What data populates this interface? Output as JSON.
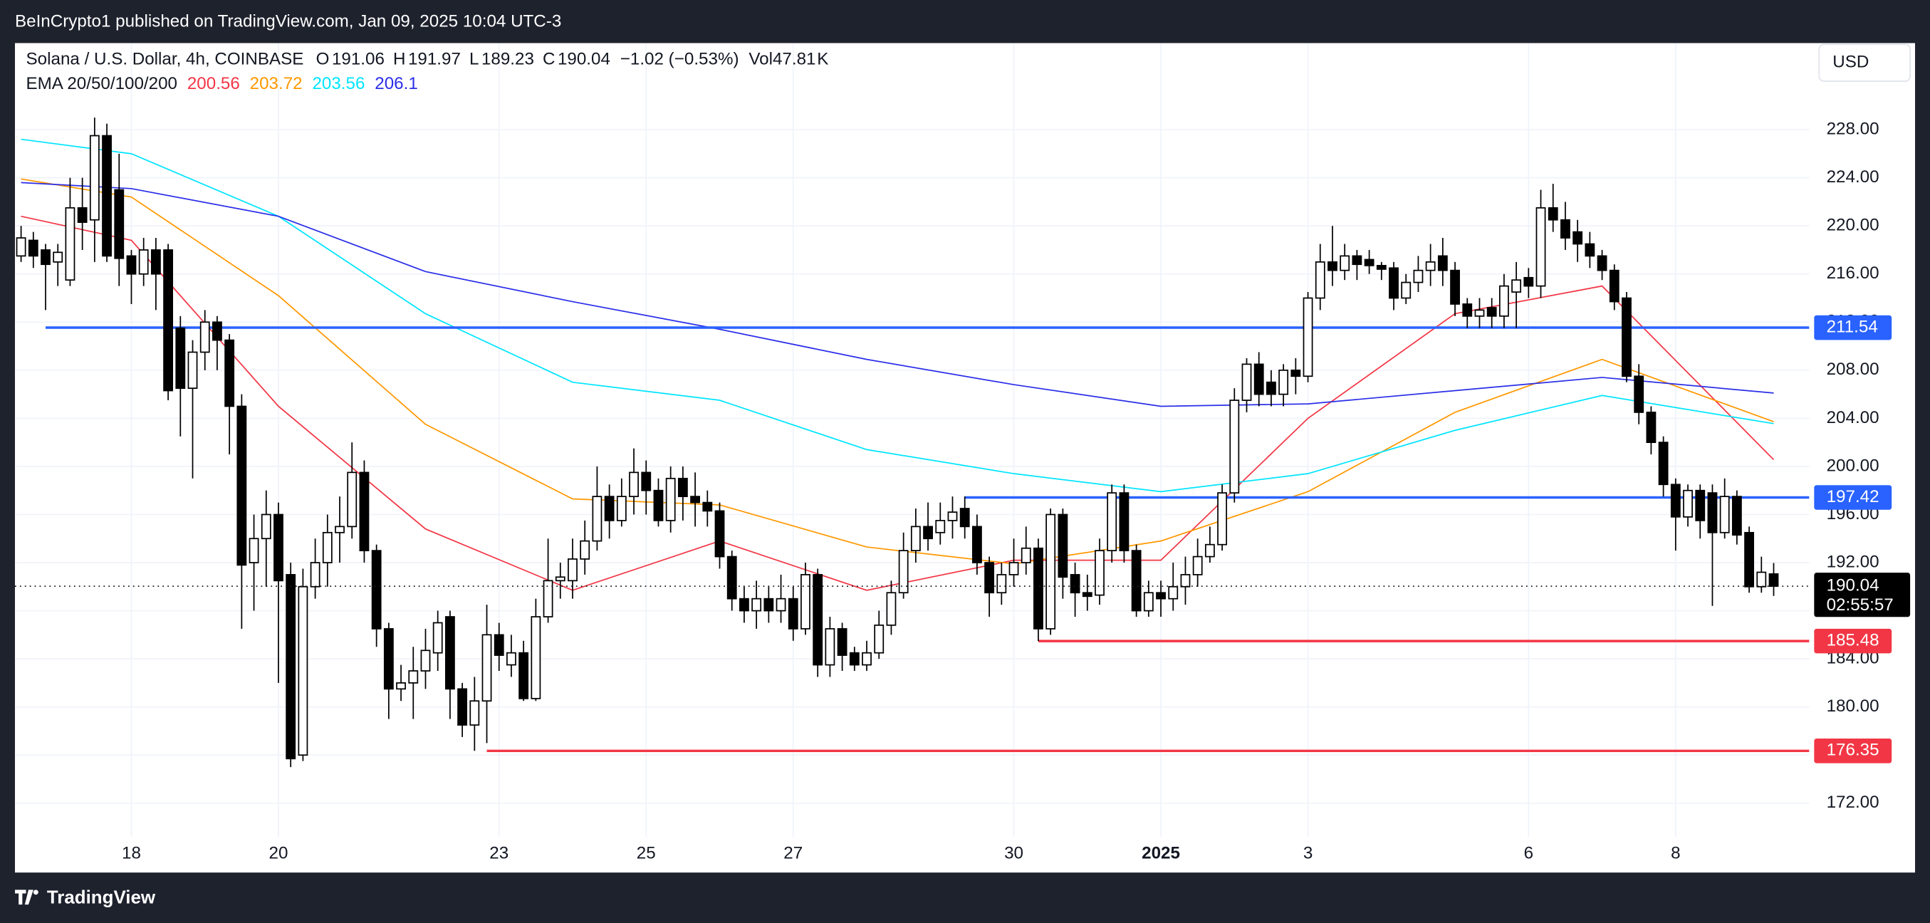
{
  "chart_data": {
    "type": "candlestick",
    "publisher": "BeInCrypto1 published on TradingView.com, Jan 09, 2025 10:04 UTC-3",
    "title": "Solana / U.S. Dollar, 4h, COINBASE",
    "ohlc_labels": [
      "O",
      "H",
      "L",
      "C"
    ],
    "change_label": "−1.02 (−0.53%)",
    "volume": {
      "label": "Vol",
      "value": 47.81,
      "suffix": "K"
    },
    "currency_button": "USD",
    "countdown": "02:55:57",
    "footer": "TradingView",
    "up_color": "#ffffff",
    "down_color": "#000000",
    "wick_color": "#000000",
    "xlim": [
      10,
      595.6
    ],
    "xticks": [
      {
        "value": 48,
        "label": "18"
      },
      {
        "value": 96,
        "label": "20"
      },
      {
        "value": 168,
        "label": "23"
      },
      {
        "value": 216,
        "label": "25"
      },
      {
        "value": 264,
        "label": "27"
      },
      {
        "value": 336,
        "label": "30"
      },
      {
        "value": 384,
        "label": "2025",
        "bold": true
      },
      {
        "value": 432,
        "label": "3"
      },
      {
        "value": 504,
        "label": "6"
      },
      {
        "value": 552,
        "label": "8"
      }
    ],
    "ylim": [
      169.2,
      235.2
    ],
    "yticks": [
      {
        "value": 172,
        "label": "172.00"
      },
      {
        "value": 176,
        "label": "176.00"
      },
      {
        "value": 180,
        "label": "180.00"
      },
      {
        "value": 184,
        "label": "184.00"
      },
      {
        "value": 188,
        "label": "188.00"
      },
      {
        "value": 192,
        "label": "192.00"
      },
      {
        "value": 196,
        "label": "196.00"
      },
      {
        "value": 200,
        "label": "200.00"
      },
      {
        "value": 204,
        "label": "204.00"
      },
      {
        "value": 208,
        "label": "208.00"
      },
      {
        "value": 212,
        "label": "212.00"
      },
      {
        "value": 216,
        "label": "216.00"
      },
      {
        "value": 220,
        "label": "220.00"
      },
      {
        "value": 224,
        "label": "224.00"
      },
      {
        "value": 228,
        "label": "228.00"
      }
    ],
    "grid": true,
    "candles": {
      "x": [
        12,
        16,
        20,
        24,
        28,
        32,
        36,
        40,
        44,
        48,
        52,
        56,
        60,
        64,
        68,
        72,
        76,
        80,
        84,
        88,
        92,
        96,
        100,
        104,
        108,
        112,
        116,
        120,
        124,
        128,
        132,
        136,
        140,
        144,
        148,
        152,
        156,
        160,
        164,
        168,
        172,
        176,
        180,
        184,
        188,
        192,
        196,
        200,
        204,
        208,
        212,
        216,
        220,
        224,
        228,
        232,
        236,
        240,
        244,
        248,
        252,
        256,
        260,
        264,
        268,
        272,
        276,
        280,
        284,
        288,
        292,
        296,
        300,
        304,
        308,
        312,
        316,
        320,
        324,
        328,
        332,
        336,
        340,
        344,
        348,
        352,
        356,
        360,
        364,
        368,
        372,
        376,
        380,
        384,
        388,
        392,
        396,
        400,
        404,
        408,
        412,
        416,
        420,
        424,
        428,
        432,
        436,
        440,
        444,
        448,
        452,
        456,
        460,
        464,
        468,
        472,
        476,
        480,
        484,
        488,
        492,
        496,
        500,
        504,
        508,
        512,
        516,
        520,
        524,
        528,
        532,
        536,
        540,
        544,
        548,
        552,
        556,
        560,
        564,
        568,
        572,
        576,
        580,
        584
      ],
      "open": [
        217.5,
        218.8,
        218,
        217,
        215.5,
        221.5,
        220.5,
        227.5,
        223,
        217.5,
        216,
        218,
        218,
        211.5,
        206.5,
        209.5,
        212,
        210.5,
        205,
        192,
        194,
        196,
        191,
        176,
        190,
        192,
        194.5,
        195,
        199.5,
        193,
        186.5,
        181.5,
        182,
        183,
        184.5,
        187.5,
        181.5,
        178.5,
        180.5,
        186,
        183.5,
        184.5,
        180.7,
        187.5,
        190.5,
        190.5,
        192.3,
        193.8,
        197.5,
        195.5,
        197.5,
        199.5,
        198,
        195.5,
        199,
        197.5,
        197,
        196.3,
        192.5,
        189,
        188,
        189,
        188,
        189,
        186.5,
        191,
        183.5,
        186.5,
        184.5,
        183.5,
        184.5,
        186.8,
        189.5,
        193,
        195,
        194.5,
        195.5,
        196.5,
        195,
        192,
        189.5,
        191,
        192,
        193.2,
        186.5,
        196,
        191,
        189.5,
        189.3,
        193,
        197.8,
        193,
        188,
        189.5,
        189,
        190,
        191,
        192.5,
        193.5,
        197.8,
        205.5,
        208.5,
        207,
        206,
        208,
        207.5,
        214,
        217,
        216.3,
        217.5,
        217.2,
        216.7,
        216.5,
        214,
        215.3,
        216.3,
        217.5,
        216.3,
        213.5,
        212.5,
        213.2,
        212.5,
        214.5,
        215.7,
        215,
        221.5,
        220.5,
        219.5,
        218.5,
        217.5,
        216.3,
        214,
        207.5,
        204.5,
        202,
        198.5,
        195.8,
        198,
        197.8,
        194.5,
        197.5,
        194.5,
        190,
        191.06
      ],
      "high": [
        220,
        219.5,
        218.5,
        218.5,
        224,
        224,
        229,
        228.5,
        226,
        218,
        219,
        219,
        218.5,
        212.5,
        210.5,
        213,
        212.5,
        211,
        206,
        196,
        198,
        197,
        192,
        191.5,
        194,
        196,
        197.5,
        202,
        200.5,
        193.5,
        187,
        183.5,
        185,
        186.5,
        188,
        188,
        182,
        182.5,
        188.5,
        187,
        186,
        185.5,
        189,
        194,
        192,
        194,
        195.5,
        200,
        198.5,
        199,
        201.5,
        200.5,
        199,
        200,
        200,
        199.5,
        198,
        197,
        193,
        190,
        190.5,
        190,
        191,
        190,
        192,
        191.5,
        187.5,
        187,
        185,
        185.5,
        188,
        190.5,
        194.5,
        196.5,
        197,
        197,
        197.5,
        197.5,
        196,
        192.5,
        192,
        194,
        195,
        194,
        196.5,
        196.5,
        192,
        191,
        194,
        198.5,
        198.5,
        193.5,
        190.5,
        190.5,
        192,
        192.5,
        194,
        195,
        198.5,
        206.5,
        209,
        209.5,
        208,
        208.5,
        209,
        214.5,
        218.5,
        220,
        218.5,
        218,
        218,
        217,
        217,
        216,
        217.5,
        218.5,
        219,
        217,
        214,
        214,
        214,
        216,
        217,
        216.5,
        223,
        223.5,
        222,
        220.5,
        219.5,
        218,
        216.8,
        214.5,
        208.5,
        205,
        202.5,
        199,
        198.5,
        198.5,
        198.5,
        199,
        198,
        195,
        192.5,
        191.97
      ],
      "low": [
        217,
        216.5,
        213,
        215,
        215,
        218,
        217,
        217,
        215,
        213.5,
        215,
        213,
        205.5,
        202.5,
        199,
        208,
        208,
        201,
        186.5,
        188,
        190,
        182,
        175,
        175.5,
        189,
        190,
        192,
        194,
        192,
        185,
        179,
        180.5,
        179,
        181.5,
        183,
        179,
        177.5,
        176.35,
        177,
        183,
        182.5,
        180.5,
        180.5,
        187,
        189,
        189,
        191,
        193,
        194,
        195,
        196,
        196,
        195,
        194.5,
        195.5,
        195,
        195,
        191.5,
        188,
        187,
        186.5,
        187,
        187,
        185.5,
        186,
        182.5,
        182.5,
        183,
        183,
        183,
        184,
        186,
        189,
        192,
        193,
        193.5,
        194,
        194,
        191,
        187.5,
        188.5,
        190,
        191,
        185.48,
        186,
        189,
        187.5,
        188,
        188.5,
        192,
        192,
        187.5,
        187.5,
        187.5,
        188,
        188.5,
        190,
        192,
        193,
        197,
        204.5,
        205,
        205,
        205,
        206,
        207,
        213,
        215,
        215.5,
        215.5,
        216,
        215.5,
        213,
        213.5,
        214.5,
        215,
        215,
        212.5,
        211.5,
        211.5,
        211.5,
        211.5,
        211.5,
        214,
        214,
        219.5,
        218,
        217,
        216.5,
        215.5,
        213,
        207,
        203.5,
        201,
        197.5,
        193,
        195,
        194,
        188.4,
        194,
        193.5,
        189.5,
        189.5,
        189.23
      ],
      "close": [
        219,
        217.5,
        216.8,
        217.8,
        221.5,
        220.3,
        227.5,
        217.5,
        217.3,
        216,
        218,
        216,
        206.3,
        206.5,
        209.5,
        212,
        210.5,
        205,
        191.8,
        194,
        196,
        190.5,
        175.7,
        190,
        192,
        194.5,
        195,
        199.5,
        193,
        186.5,
        181.5,
        182,
        183,
        184.7,
        187,
        181.5,
        178.5,
        180.5,
        186,
        184.3,
        184.5,
        180.7,
        187.5,
        190.5,
        190.8,
        192.3,
        193.8,
        197.5,
        195.5,
        197.5,
        199.5,
        198,
        195.5,
        199,
        197.5,
        197,
        196.3,
        192.5,
        189,
        188,
        189,
        188,
        189,
        186.5,
        191,
        183.5,
        186.5,
        184.3,
        183.5,
        184.5,
        186.8,
        189.5,
        193,
        195,
        194,
        195.5,
        196.2,
        195,
        192,
        189.5,
        191,
        192,
        193.2,
        186.5,
        196,
        190.8,
        189.5,
        189.2,
        193,
        197.8,
        193,
        188,
        189.5,
        189,
        190,
        191,
        192.5,
        193.5,
        197.8,
        205.5,
        208.5,
        206,
        206,
        208,
        207.5,
        214,
        217,
        216.3,
        217.5,
        216.8,
        216.7,
        216.4,
        214,
        215.3,
        216.3,
        217,
        216.3,
        213.5,
        212.5,
        213,
        212.5,
        215,
        215.5,
        215,
        221.5,
        220.5,
        219,
        218.5,
        217.5,
        216.3,
        213.7,
        207.5,
        204.5,
        202,
        198.5,
        195.8,
        198,
        195.5,
        194.5,
        197.5,
        194.3,
        190,
        191.2,
        190.04
      ]
    },
    "ema": {
      "label": "EMA 20/50/100/200",
      "x": [
        12,
        48,
        96,
        144,
        192,
        240,
        288,
        336,
        384,
        432,
        480,
        528,
        584
      ],
      "series": [
        {
          "color": "#f23645",
          "values": [
            220.8,
            218.8,
            205,
            194.8,
            189.7,
            193.8,
            189.7,
            192.2,
            192.2,
            204,
            212.7,
            215,
            200.56
          ]
        },
        {
          "color": "#ff9800",
          "values": [
            223.9,
            222.4,
            214.2,
            203.5,
            197.3,
            196.8,
            193.3,
            191.9,
            193.8,
            197.9,
            204.5,
            208.9,
            203.72
          ]
        },
        {
          "color": "#00e5ff",
          "values": [
            227.2,
            226,
            220.8,
            212.7,
            207,
            205.5,
            201.4,
            199.4,
            197.9,
            199.4,
            203,
            205.9,
            203.56
          ]
        },
        {
          "color": "#2a2ee8",
          "values": [
            223.6,
            223.1,
            220.8,
            216.2,
            213.7,
            211.4,
            208.9,
            206.8,
            205,
            205.2,
            206.3,
            207.4,
            206.1
          ]
        }
      ]
    },
    "levels": [
      {
        "value": 211.54,
        "color": "#2962ff",
        "from": 20
      },
      {
        "value": 197.42,
        "color": "#2962ff",
        "from": 320
      },
      {
        "value": 185.48,
        "color": "#f23645",
        "from": 344
      },
      {
        "value": 176.35,
        "color": "#f23645",
        "from": 164
      }
    ]
  }
}
